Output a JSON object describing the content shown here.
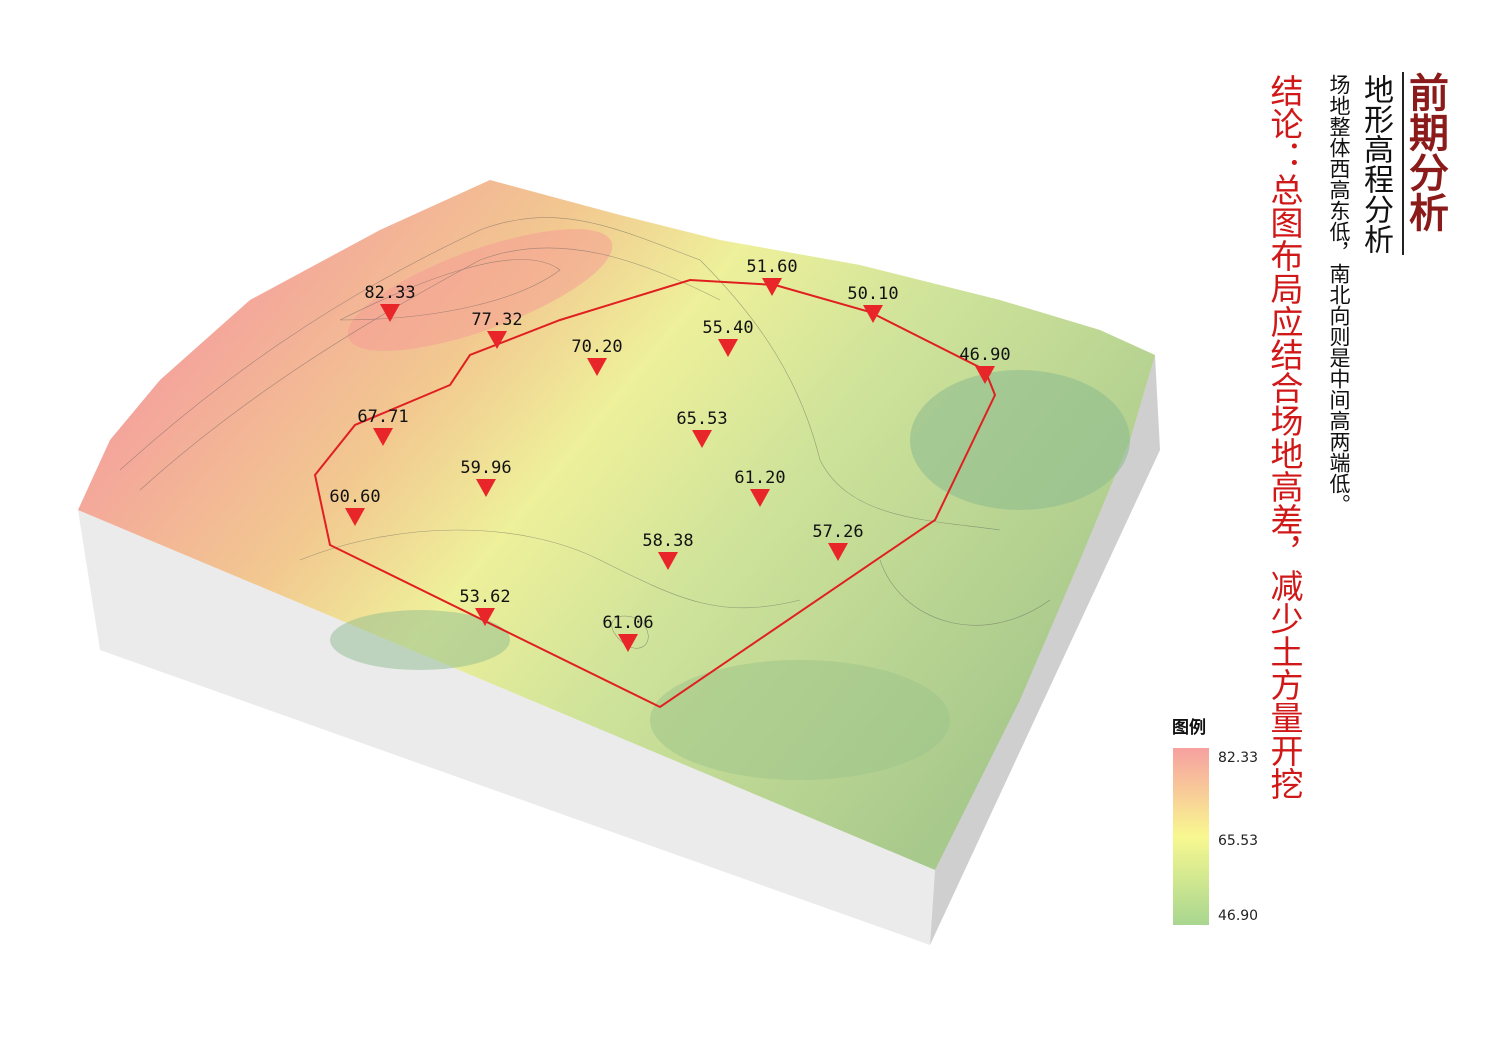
{
  "header": {
    "title": "前期分析",
    "subtitle": "地形高程分析",
    "description": "场地整体西高东低，南北向则是中间高两端低。",
    "conclusion": "结论：总图布局应结合场地高差，减少土方量开挖"
  },
  "points": [
    {
      "label": "82.33"
    },
    {
      "label": "77.32"
    },
    {
      "label": "70.20"
    },
    {
      "label": "55.40"
    },
    {
      "label": "51.60"
    },
    {
      "label": "50.10"
    },
    {
      "label": "46.90"
    },
    {
      "label": "67.71"
    },
    {
      "label": "65.53"
    },
    {
      "label": "59.96"
    },
    {
      "label": "61.20"
    },
    {
      "label": "60.60"
    },
    {
      "label": "58.38"
    },
    {
      "label": "57.26"
    },
    {
      "label": "53.62"
    },
    {
      "label": "61.06"
    }
  ],
  "legend": {
    "title": "图例",
    "labels": [
      "82.33",
      "65.53",
      "46.90"
    ]
  }
}
